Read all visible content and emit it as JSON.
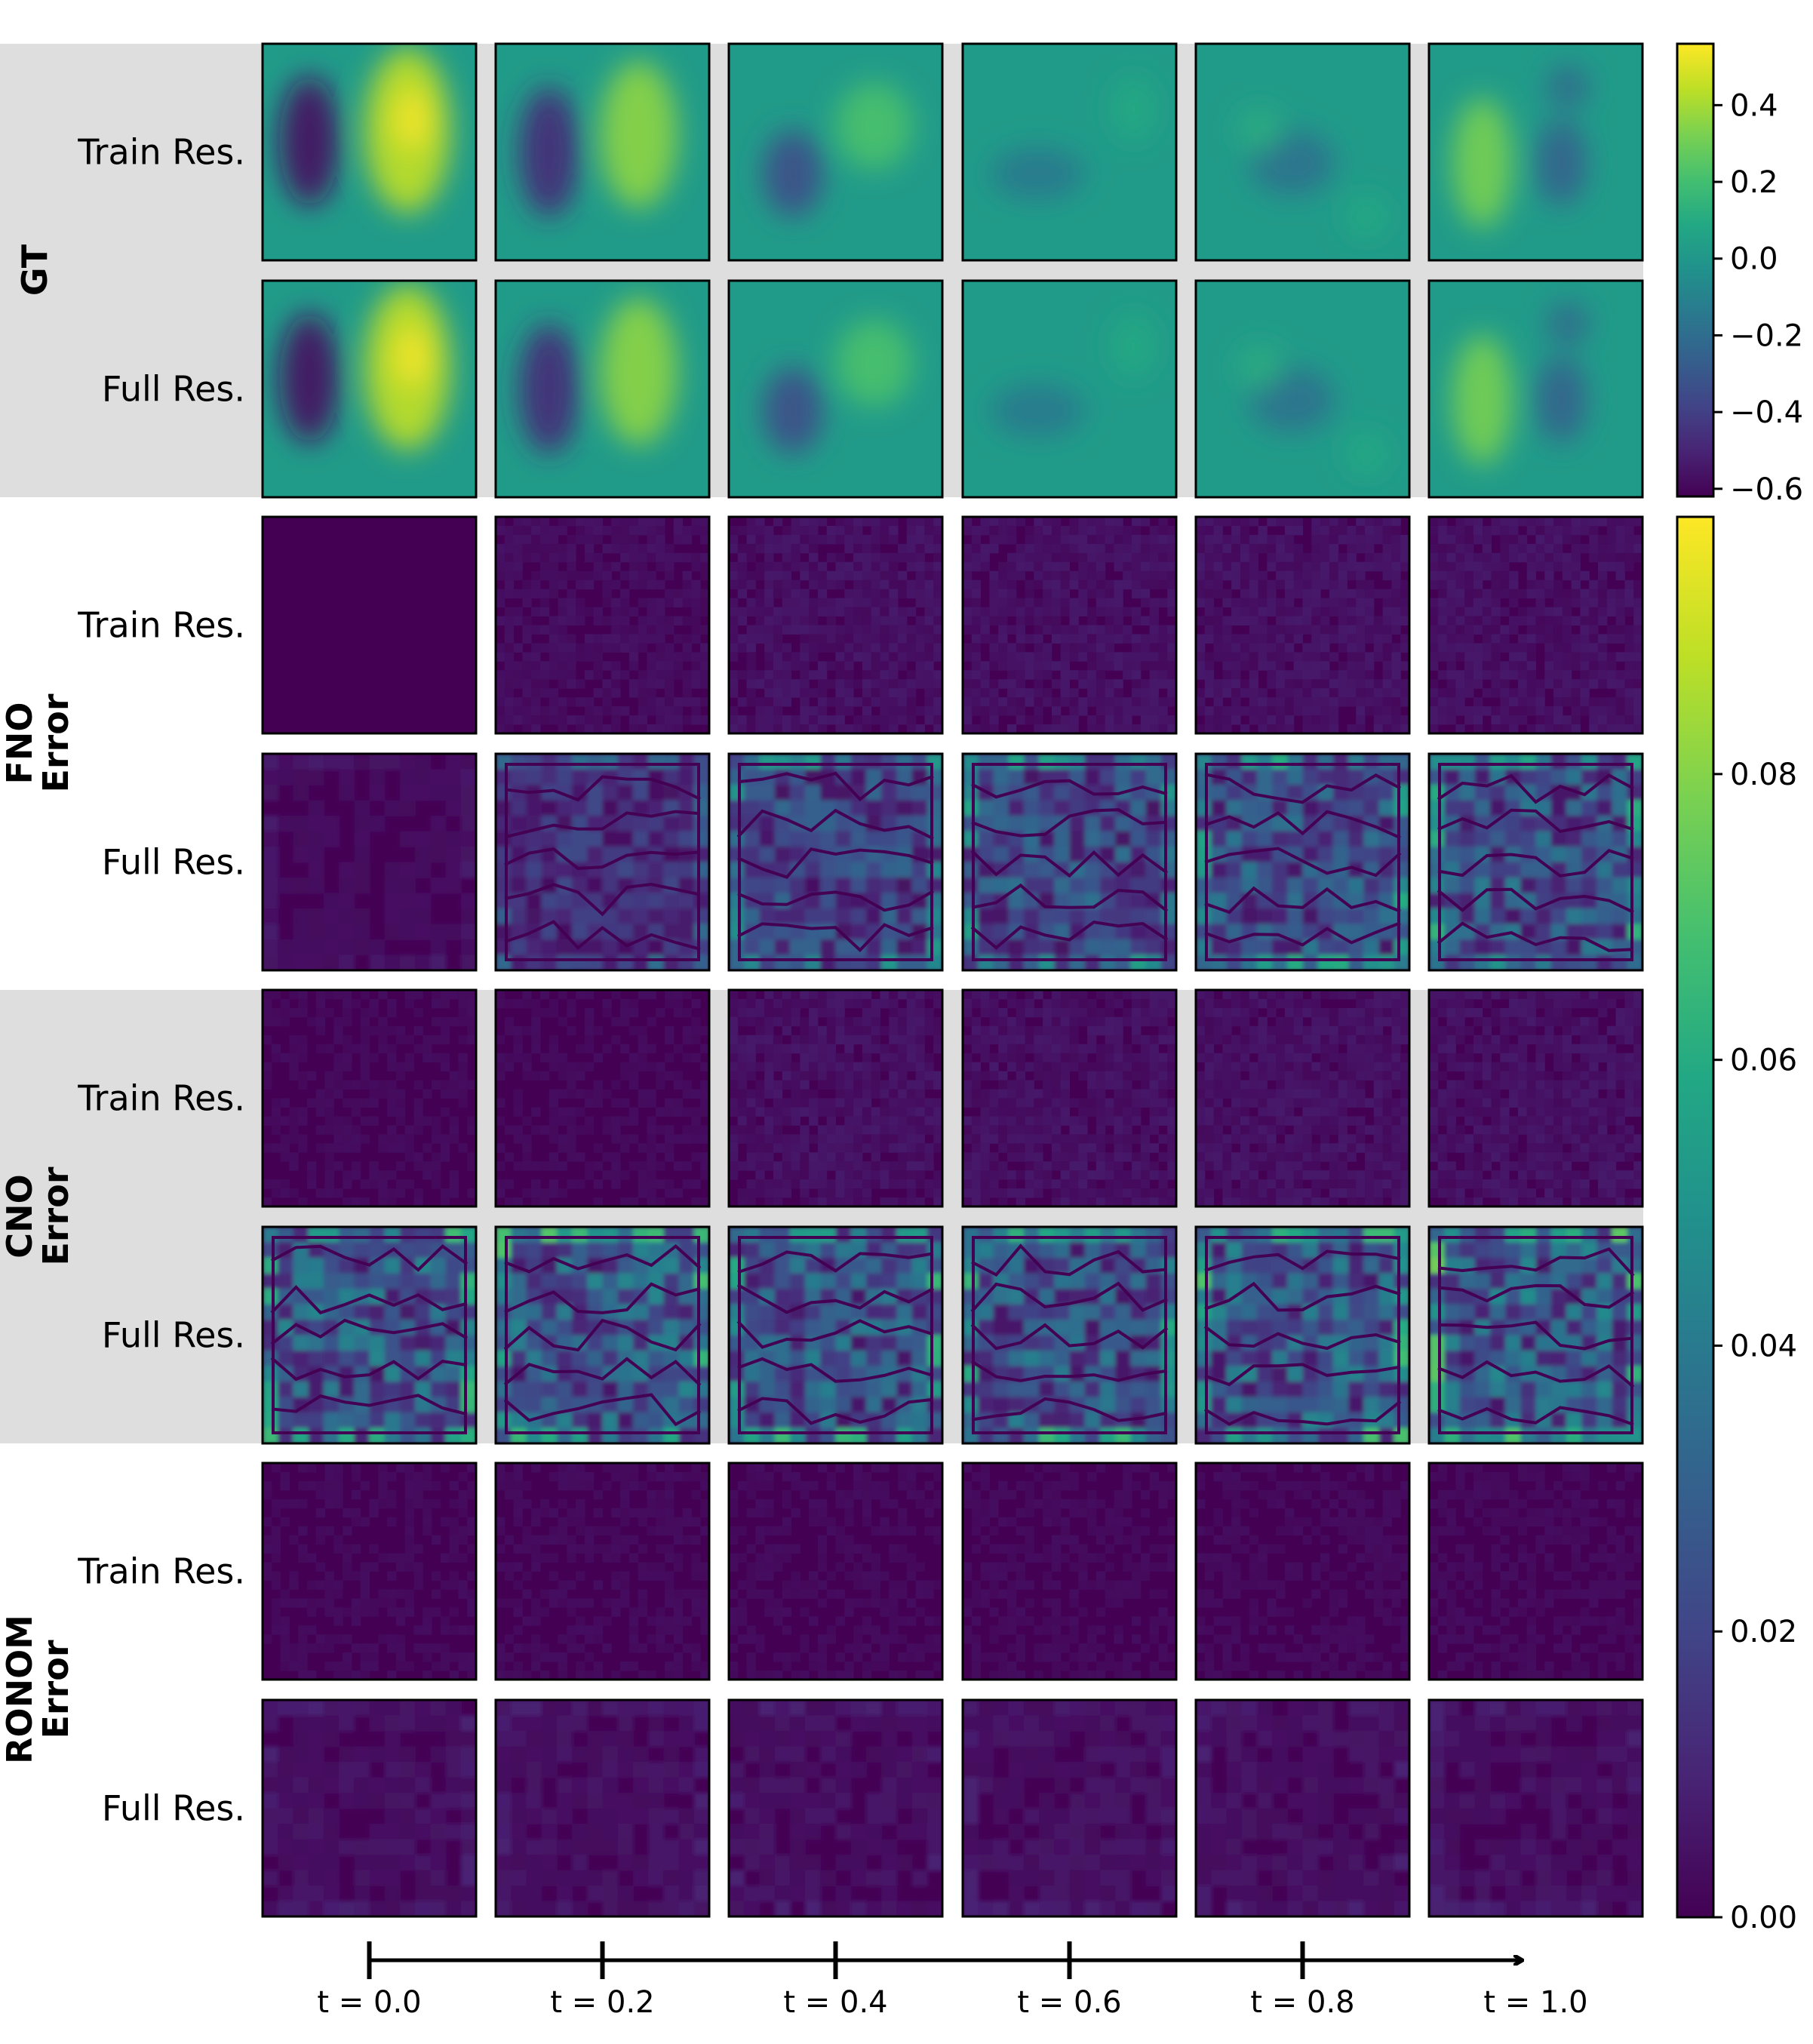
{
  "chart_data": {
    "type": "heatmap",
    "time_axis": {
      "ticks": [
        0.0,
        0.2,
        0.4,
        0.6,
        0.8,
        1.0
      ],
      "tick_labels": [
        "t = 0.0",
        "t = 0.2",
        "t = 0.4",
        "t = 0.6",
        "t = 0.8",
        "t = 1.0"
      ]
    },
    "row_labels": {
      "train": "Train Res.",
      "full": "Full Res."
    },
    "groups": [
      {
        "id": "gt",
        "label_lines": [
          "GT"
        ],
        "shaded": true,
        "colorbar": "field"
      },
      {
        "id": "fno",
        "label_lines": [
          "FNO",
          "Error"
        ],
        "shaded": false,
        "colorbar": "error"
      },
      {
        "id": "cno",
        "label_lines": [
          "CNO",
          "Error"
        ],
        "shaded": true,
        "colorbar": "error"
      },
      {
        "id": "ronom",
        "label_lines": [
          "RONOM",
          "Error"
        ],
        "shaded": false,
        "colorbar": "error"
      }
    ],
    "colorbars": {
      "field": {
        "range": [
          -0.62,
          0.56
        ],
        "ticks": [
          0.4,
          0.2,
          0.0,
          -0.2,
          -0.4,
          -0.6
        ],
        "tick_labels": [
          "0.4",
          "0.2",
          "0.0",
          "−0.2",
          "−0.4",
          "−0.6"
        ]
      },
      "error": {
        "range": [
          0.0,
          0.098
        ],
        "ticks": [
          0.08,
          0.06,
          0.04,
          0.02,
          0.0
        ],
        "tick_labels": [
          "0.08",
          "0.06",
          "0.04",
          "0.02",
          "0.00"
        ]
      }
    },
    "colormap": "viridis",
    "error_levels_approx": {
      "fno_train": [
        0.001,
        0.003,
        0.004,
        0.004,
        0.004,
        0.004
      ],
      "fno_full": [
        0.003,
        0.015,
        0.022,
        0.024,
        0.026,
        0.027
      ],
      "cno_train": [
        0.002,
        0.002,
        0.004,
        0.004,
        0.004,
        0.004
      ],
      "cno_full": [
        0.03,
        0.03,
        0.028,
        0.028,
        0.03,
        0.032
      ],
      "ronom_train": [
        0.002,
        0.002,
        0.002,
        0.002,
        0.002,
        0.002
      ],
      "ronom_full": [
        0.004,
        0.004,
        0.004,
        0.004,
        0.004,
        0.004
      ]
    }
  },
  "colors": {
    "shade": "#dedede",
    "frame": "#000000",
    "viridis_low": "#440154",
    "viridis_mid": "#21918c",
    "viridis_high": "#fde725"
  }
}
